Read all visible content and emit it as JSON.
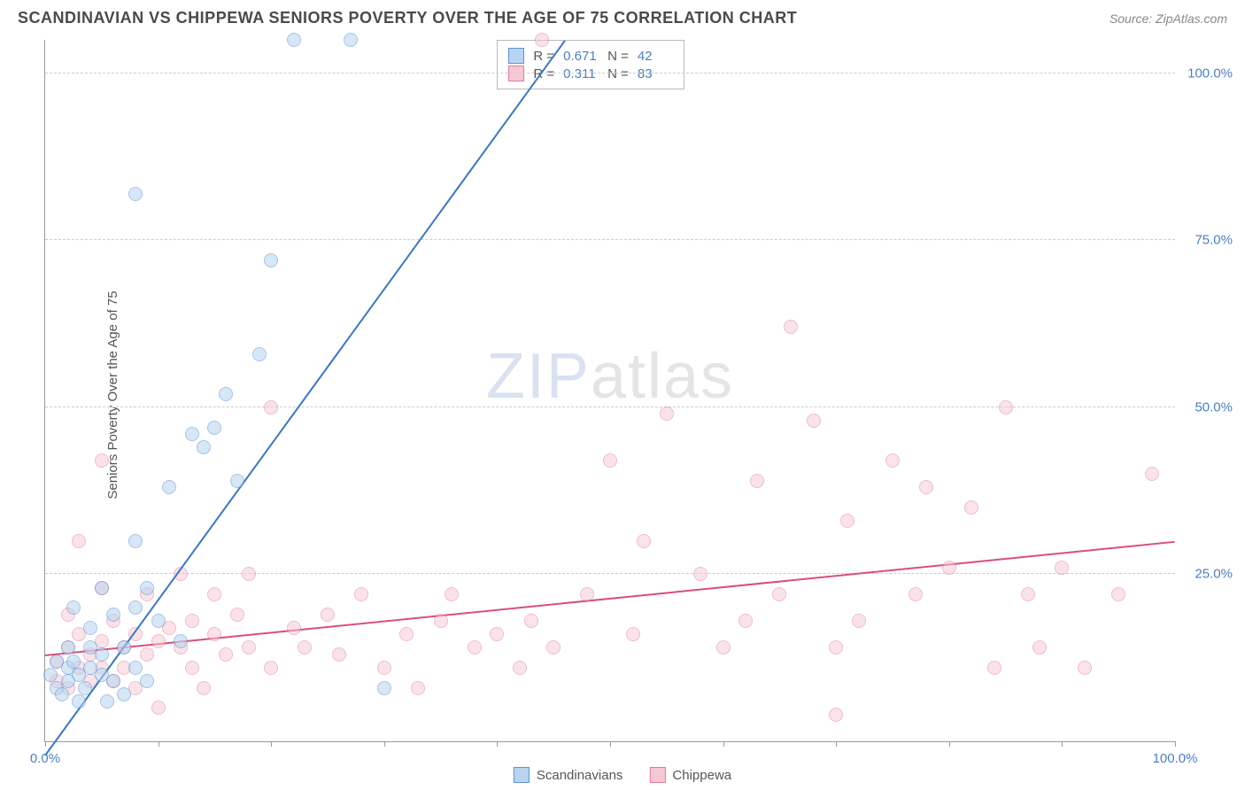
{
  "header": {
    "title": "SCANDINAVIAN VS CHIPPEWA SENIORS POVERTY OVER THE AGE OF 75 CORRELATION CHART",
    "source": "Source: ZipAtlas.com"
  },
  "y_axis": {
    "label": "Seniors Poverty Over the Age of 75"
  },
  "watermark": {
    "part1": "ZIP",
    "part2": "atlas"
  },
  "chart": {
    "type": "scatter",
    "xlim": [
      0,
      100
    ],
    "ylim": [
      0,
      105
    ],
    "x_ticks": [
      0,
      10,
      20,
      30,
      40,
      50,
      60,
      70,
      80,
      90,
      100
    ],
    "x_tick_labels": {
      "0": "0.0%",
      "100": "100.0%"
    },
    "y_gridlines": [
      25,
      50,
      75,
      100
    ],
    "y_tick_labels": {
      "25": "25.0%",
      "50": "50.0%",
      "75": "75.0%",
      "100": "100.0%"
    },
    "grid_color": "#cccccc",
    "background_color": "#ffffff",
    "marker_radius": 7,
    "marker_stroke_width": 1.2,
    "series": [
      {
        "name": "Scandinavians",
        "fill_color": "#b8d4f0",
        "stroke_color": "#5a94d6",
        "fill_opacity": 0.55,
        "R": "0.671",
        "N": "42",
        "trend": {
          "x1": 0,
          "y1": -2,
          "x2": 46,
          "y2": 105,
          "color": "#3b78c4",
          "width": 2
        },
        "points": [
          [
            0.5,
            10
          ],
          [
            1,
            8
          ],
          [
            1,
            12
          ],
          [
            1.5,
            7
          ],
          [
            2,
            11
          ],
          [
            2,
            14
          ],
          [
            2,
            9
          ],
          [
            2.5,
            12
          ],
          [
            2.5,
            20
          ],
          [
            3,
            10
          ],
          [
            3,
            6
          ],
          [
            3.5,
            8
          ],
          [
            4,
            14
          ],
          [
            4,
            11
          ],
          [
            4,
            17
          ],
          [
            5,
            13
          ],
          [
            5,
            10
          ],
          [
            5,
            23
          ],
          [
            5.5,
            6
          ],
          [
            6,
            9
          ],
          [
            6,
            19
          ],
          [
            7,
            14
          ],
          [
            7,
            7
          ],
          [
            8,
            20
          ],
          [
            8,
            11
          ],
          [
            8,
            30
          ],
          [
            9,
            23
          ],
          [
            9,
            9
          ],
          [
            10,
            18
          ],
          [
            11,
            38
          ],
          [
            12,
            15
          ],
          [
            13,
            46
          ],
          [
            14,
            44
          ],
          [
            15,
            47
          ],
          [
            16,
            52
          ],
          [
            17,
            39
          ],
          [
            19,
            58
          ],
          [
            20,
            72
          ],
          [
            22,
            105
          ],
          [
            27,
            105
          ],
          [
            30,
            8
          ],
          [
            8,
            82
          ]
        ]
      },
      {
        "name": "Chippewa",
        "fill_color": "#f5c9d4",
        "stroke_color": "#e27a9a",
        "fill_opacity": 0.5,
        "R": "0.311",
        "N": "83",
        "trend": {
          "x1": 0,
          "y1": 13,
          "x2": 100,
          "y2": 30,
          "color": "#d94f78",
          "width": 2
        },
        "points": [
          [
            1,
            12
          ],
          [
            1,
            9
          ],
          [
            2,
            14
          ],
          [
            2,
            8
          ],
          [
            2,
            19
          ],
          [
            3,
            11
          ],
          [
            3,
            16
          ],
          [
            3,
            30
          ],
          [
            4,
            13
          ],
          [
            4,
            9
          ],
          [
            5,
            15
          ],
          [
            5,
            11
          ],
          [
            5,
            23
          ],
          [
            6,
            18
          ],
          [
            6,
            9
          ],
          [
            7,
            14
          ],
          [
            7,
            11
          ],
          [
            8,
            16
          ],
          [
            8,
            8
          ],
          [
            9,
            13
          ],
          [
            9,
            22
          ],
          [
            10,
            15
          ],
          [
            10,
            5
          ],
          [
            5,
            42
          ],
          [
            11,
            17
          ],
          [
            12,
            14
          ],
          [
            12,
            25
          ],
          [
            13,
            11
          ],
          [
            13,
            18
          ],
          [
            14,
            8
          ],
          [
            15,
            16
          ],
          [
            15,
            22
          ],
          [
            16,
            13
          ],
          [
            17,
            19
          ],
          [
            18,
            14
          ],
          [
            18,
            25
          ],
          [
            20,
            50
          ],
          [
            20,
            11
          ],
          [
            22,
            17
          ],
          [
            23,
            14
          ],
          [
            25,
            19
          ],
          [
            26,
            13
          ],
          [
            28,
            22
          ],
          [
            30,
            11
          ],
          [
            32,
            16
          ],
          [
            33,
            8
          ],
          [
            35,
            18
          ],
          [
            36,
            22
          ],
          [
            38,
            14
          ],
          [
            40,
            16
          ],
          [
            42,
            11
          ],
          [
            43,
            18
          ],
          [
            44,
            105
          ],
          [
            45,
            14
          ],
          [
            48,
            22
          ],
          [
            50,
            42
          ],
          [
            52,
            16
          ],
          [
            53,
            30
          ],
          [
            55,
            49
          ],
          [
            58,
            25
          ],
          [
            60,
            14
          ],
          [
            62,
            18
          ],
          [
            63,
            39
          ],
          [
            65,
            22
          ],
          [
            66,
            62
          ],
          [
            68,
            48
          ],
          [
            70,
            14
          ],
          [
            71,
            33
          ],
          [
            72,
            18
          ],
          [
            75,
            42
          ],
          [
            77,
            22
          ],
          [
            78,
            38
          ],
          [
            80,
            26
          ],
          [
            82,
            35
          ],
          [
            84,
            11
          ],
          [
            85,
            50
          ],
          [
            87,
            22
          ],
          [
            88,
            14
          ],
          [
            90,
            26
          ],
          [
            92,
            11
          ],
          [
            95,
            22
          ],
          [
            98,
            40
          ],
          [
            70,
            4
          ]
        ]
      }
    ]
  },
  "stats_box": {
    "pos_left_pct": 40,
    "pos_top_pct": 0,
    "R_label": "R =",
    "N_label": "N ="
  },
  "legend": {
    "items": [
      "Scandinavians",
      "Chippewa"
    ]
  }
}
